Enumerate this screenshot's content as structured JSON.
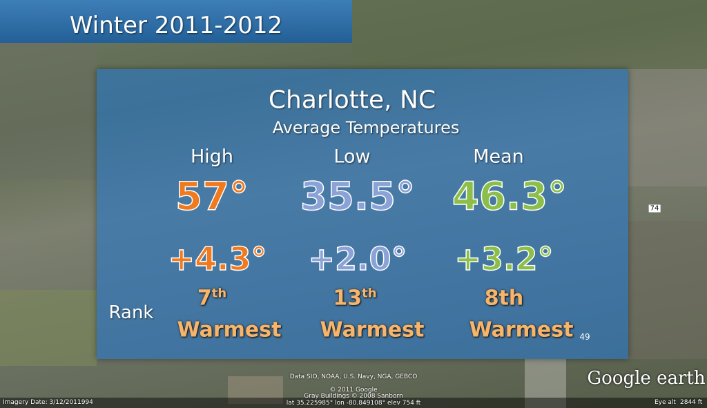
{
  "title": "Winter 2011-2012",
  "panel": {
    "city": "Charlotte, NC",
    "subtitle": "Average Temperatures",
    "rank_label": "Rank",
    "columns": [
      {
        "header": "High",
        "value": "57°",
        "anomaly": "+4.3°",
        "rank": "7",
        "rank_suffix": "th",
        "rank_word": "Warmest"
      },
      {
        "header": "Low",
        "value": "35.5°",
        "anomaly": "+2.0°",
        "rank": "13",
        "rank_suffix": "th",
        "rank_word": "Warmest"
      },
      {
        "header": "Mean",
        "value": "46.3°",
        "anomaly": "+3.2°",
        "rank": "8th",
        "rank_word": "Warmest"
      }
    ]
  },
  "map": {
    "road_label": "49",
    "highway_label": "74",
    "attribution": [
      "Data SIO, NOAA, U.S. Navy, NGA, GEBCO",
      "© 2011 Google",
      "Gray Buildings © 2008 Sanborn"
    ],
    "logo": "Google earth"
  },
  "status_bar": {
    "imagery_date": "Imagery Date: 3/12/2011",
    "year": "1994",
    "coordinates": "lat  35.225985°  lon  -80.849108°  elev  754 ft",
    "eye_alt_label": "Eye alt",
    "eye_alt": "2844 ft"
  }
}
